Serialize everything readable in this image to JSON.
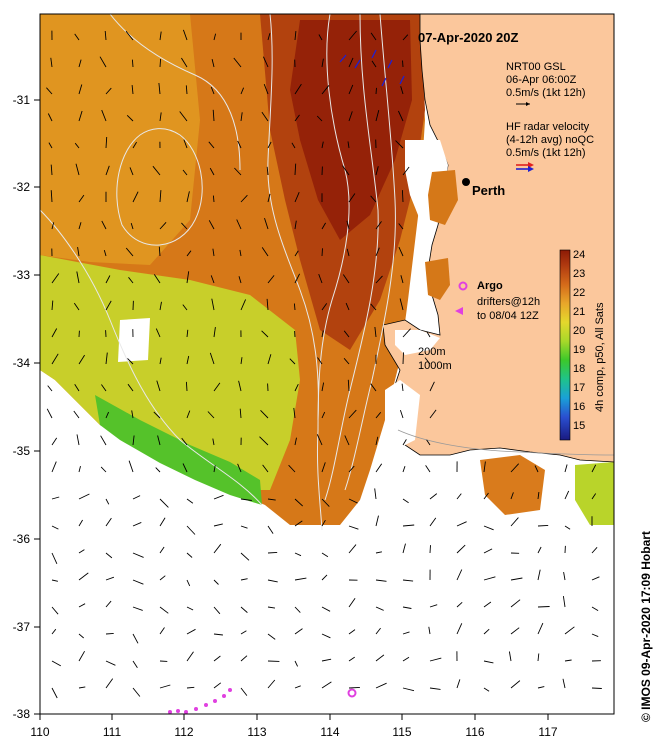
{
  "map": {
    "title": "07-Apr-2020 20Z",
    "lon_ticks": [
      "110",
      "111",
      "112",
      "113",
      "114",
      "115",
      "116",
      "117"
    ],
    "lat_ticks": [
      "-31",
      "-32",
      "-33",
      "-34",
      "-35",
      "-36",
      "-37",
      "-38"
    ],
    "lon_range": [
      110,
      117.9
    ],
    "lat_range": [
      -30.2,
      -38.0
    ],
    "city": "Perth",
    "city_lonlat": [
      115.86,
      -31.95
    ],
    "contour_labels": [
      "200m",
      "1000m"
    ],
    "colorbar": {
      "ticks": [
        "24",
        "23",
        "22",
        "21",
        "20",
        "19",
        "18",
        "17",
        "16",
        "15"
      ],
      "label": "4h comp, p50, All Sats",
      "range": [
        14.5,
        24.5
      ]
    },
    "credit": "© IMOS 09-Apr-2020 17:09 Hobart"
  },
  "legend": {
    "gsl_line1": "NRT00 GSL",
    "gsl_line2": "06-Apr 06:00Z",
    "gsl_line3": "0.5m/s (1kt 12h)",
    "hf_line1": "HF radar velocity",
    "hf_line2": "(4-12h avg) noQC",
    "hf_line3": "0.5m/s (1kt 12h)",
    "argo_label": "Argo",
    "drifter_line1": "drifters@12h",
    "drifter_line2": "to 08/04 12Z"
  },
  "argo_floats": [
    [
      115.78,
      -33.1
    ],
    [
      114.28,
      -37.78
    ]
  ],
  "colors": {
    "land": "#fbc79c",
    "sst_warm": "#9a2407",
    "sst_mid": "#d87a1a",
    "sst_cool": "#d6d32c",
    "argo": "#e040e0",
    "hf_red": "#e02020",
    "hf_blue": "#2020d0"
  }
}
